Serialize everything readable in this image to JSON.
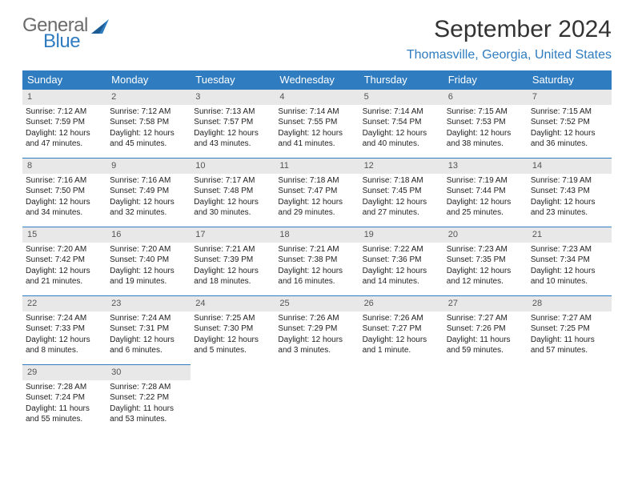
{
  "brand": {
    "text1": "General",
    "text2": "Blue",
    "color_general": "#6b6b6b",
    "color_blue": "#2f7cc0"
  },
  "title": "September 2024",
  "location": "Thomasville, Georgia, United States",
  "colors": {
    "header_bg": "#2f7cc0",
    "header_text": "#ffffff",
    "daynum_bg": "#e8e8e8",
    "cell_border": "#2f7cc0",
    "body_text": "#222222"
  },
  "weekdays": [
    "Sunday",
    "Monday",
    "Tuesday",
    "Wednesday",
    "Thursday",
    "Friday",
    "Saturday"
  ],
  "weeks": [
    [
      {
        "num": "1",
        "sunrise": "Sunrise: 7:12 AM",
        "sunset": "Sunset: 7:59 PM",
        "daylight": "Daylight: 12 hours and 47 minutes."
      },
      {
        "num": "2",
        "sunrise": "Sunrise: 7:12 AM",
        "sunset": "Sunset: 7:58 PM",
        "daylight": "Daylight: 12 hours and 45 minutes."
      },
      {
        "num": "3",
        "sunrise": "Sunrise: 7:13 AM",
        "sunset": "Sunset: 7:57 PM",
        "daylight": "Daylight: 12 hours and 43 minutes."
      },
      {
        "num": "4",
        "sunrise": "Sunrise: 7:14 AM",
        "sunset": "Sunset: 7:55 PM",
        "daylight": "Daylight: 12 hours and 41 minutes."
      },
      {
        "num": "5",
        "sunrise": "Sunrise: 7:14 AM",
        "sunset": "Sunset: 7:54 PM",
        "daylight": "Daylight: 12 hours and 40 minutes."
      },
      {
        "num": "6",
        "sunrise": "Sunrise: 7:15 AM",
        "sunset": "Sunset: 7:53 PM",
        "daylight": "Daylight: 12 hours and 38 minutes."
      },
      {
        "num": "7",
        "sunrise": "Sunrise: 7:15 AM",
        "sunset": "Sunset: 7:52 PM",
        "daylight": "Daylight: 12 hours and 36 minutes."
      }
    ],
    [
      {
        "num": "8",
        "sunrise": "Sunrise: 7:16 AM",
        "sunset": "Sunset: 7:50 PM",
        "daylight": "Daylight: 12 hours and 34 minutes."
      },
      {
        "num": "9",
        "sunrise": "Sunrise: 7:16 AM",
        "sunset": "Sunset: 7:49 PM",
        "daylight": "Daylight: 12 hours and 32 minutes."
      },
      {
        "num": "10",
        "sunrise": "Sunrise: 7:17 AM",
        "sunset": "Sunset: 7:48 PM",
        "daylight": "Daylight: 12 hours and 30 minutes."
      },
      {
        "num": "11",
        "sunrise": "Sunrise: 7:18 AM",
        "sunset": "Sunset: 7:47 PM",
        "daylight": "Daylight: 12 hours and 29 minutes."
      },
      {
        "num": "12",
        "sunrise": "Sunrise: 7:18 AM",
        "sunset": "Sunset: 7:45 PM",
        "daylight": "Daylight: 12 hours and 27 minutes."
      },
      {
        "num": "13",
        "sunrise": "Sunrise: 7:19 AM",
        "sunset": "Sunset: 7:44 PM",
        "daylight": "Daylight: 12 hours and 25 minutes."
      },
      {
        "num": "14",
        "sunrise": "Sunrise: 7:19 AM",
        "sunset": "Sunset: 7:43 PM",
        "daylight": "Daylight: 12 hours and 23 minutes."
      }
    ],
    [
      {
        "num": "15",
        "sunrise": "Sunrise: 7:20 AM",
        "sunset": "Sunset: 7:42 PM",
        "daylight": "Daylight: 12 hours and 21 minutes."
      },
      {
        "num": "16",
        "sunrise": "Sunrise: 7:20 AM",
        "sunset": "Sunset: 7:40 PM",
        "daylight": "Daylight: 12 hours and 19 minutes."
      },
      {
        "num": "17",
        "sunrise": "Sunrise: 7:21 AM",
        "sunset": "Sunset: 7:39 PM",
        "daylight": "Daylight: 12 hours and 18 minutes."
      },
      {
        "num": "18",
        "sunrise": "Sunrise: 7:21 AM",
        "sunset": "Sunset: 7:38 PM",
        "daylight": "Daylight: 12 hours and 16 minutes."
      },
      {
        "num": "19",
        "sunrise": "Sunrise: 7:22 AM",
        "sunset": "Sunset: 7:36 PM",
        "daylight": "Daylight: 12 hours and 14 minutes."
      },
      {
        "num": "20",
        "sunrise": "Sunrise: 7:23 AM",
        "sunset": "Sunset: 7:35 PM",
        "daylight": "Daylight: 12 hours and 12 minutes."
      },
      {
        "num": "21",
        "sunrise": "Sunrise: 7:23 AM",
        "sunset": "Sunset: 7:34 PM",
        "daylight": "Daylight: 12 hours and 10 minutes."
      }
    ],
    [
      {
        "num": "22",
        "sunrise": "Sunrise: 7:24 AM",
        "sunset": "Sunset: 7:33 PM",
        "daylight": "Daylight: 12 hours and 8 minutes."
      },
      {
        "num": "23",
        "sunrise": "Sunrise: 7:24 AM",
        "sunset": "Sunset: 7:31 PM",
        "daylight": "Daylight: 12 hours and 6 minutes."
      },
      {
        "num": "24",
        "sunrise": "Sunrise: 7:25 AM",
        "sunset": "Sunset: 7:30 PM",
        "daylight": "Daylight: 12 hours and 5 minutes."
      },
      {
        "num": "25",
        "sunrise": "Sunrise: 7:26 AM",
        "sunset": "Sunset: 7:29 PM",
        "daylight": "Daylight: 12 hours and 3 minutes."
      },
      {
        "num": "26",
        "sunrise": "Sunrise: 7:26 AM",
        "sunset": "Sunset: 7:27 PM",
        "daylight": "Daylight: 12 hours and 1 minute."
      },
      {
        "num": "27",
        "sunrise": "Sunrise: 7:27 AM",
        "sunset": "Sunset: 7:26 PM",
        "daylight": "Daylight: 11 hours and 59 minutes."
      },
      {
        "num": "28",
        "sunrise": "Sunrise: 7:27 AM",
        "sunset": "Sunset: 7:25 PM",
        "daylight": "Daylight: 11 hours and 57 minutes."
      }
    ],
    [
      {
        "num": "29",
        "sunrise": "Sunrise: 7:28 AM",
        "sunset": "Sunset: 7:24 PM",
        "daylight": "Daylight: 11 hours and 55 minutes."
      },
      {
        "num": "30",
        "sunrise": "Sunrise: 7:28 AM",
        "sunset": "Sunset: 7:22 PM",
        "daylight": "Daylight: 11 hours and 53 minutes."
      },
      null,
      null,
      null,
      null,
      null
    ]
  ]
}
